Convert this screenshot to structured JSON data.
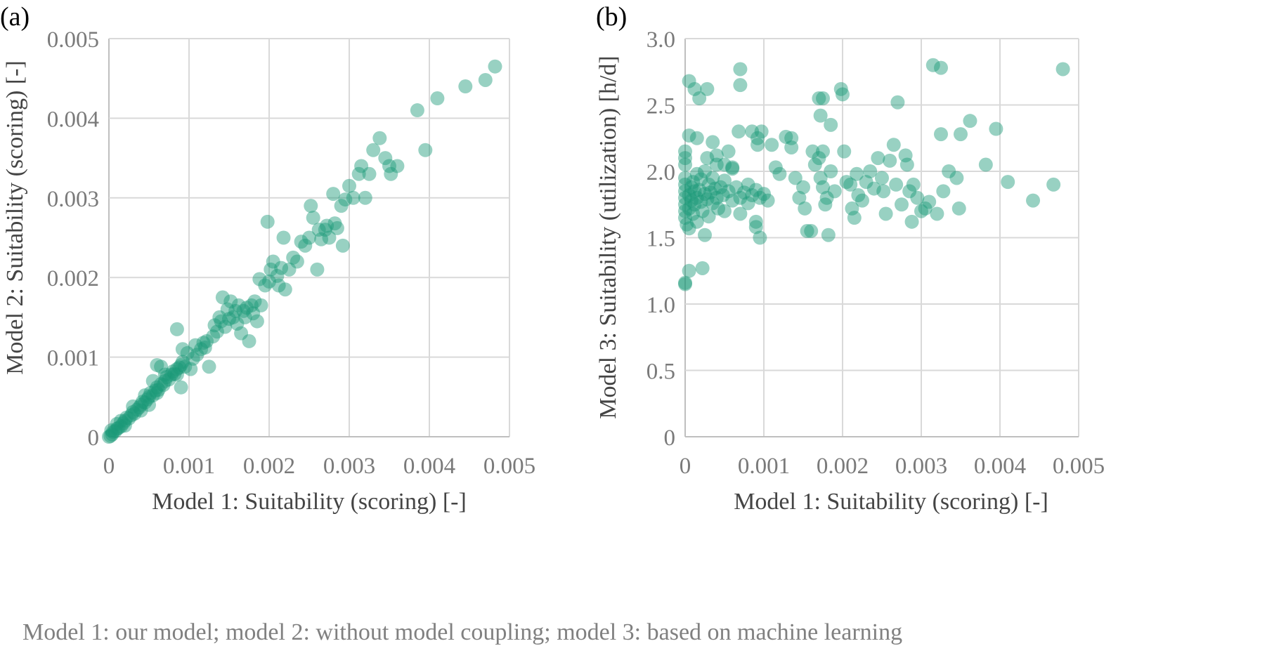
{
  "caption": "Model 1: our model; model 2: without model coupling; model 3: based on machine learning",
  "point_color": "#1a9a78",
  "grid_color": "#d9d9d9",
  "chart_data": [
    {
      "id": "a",
      "panel_label": "(a)",
      "type": "scatter",
      "title": "",
      "xlabel": "Model 1: Suitability (scoring) [-]",
      "ylabel": "Model 2: Suitability (scoring) [-]",
      "xlim": [
        0,
        0.005
      ],
      "ylim": [
        0,
        0.005
      ],
      "xticks": [
        0,
        0.001,
        0.002,
        0.003,
        0.004,
        0.005
      ],
      "xtick_labels": [
        "0",
        "0.001",
        "0.002",
        "0.003",
        "0.004",
        "0.005"
      ],
      "yticks": [
        0,
        0.001,
        0.002,
        0.003,
        0.004,
        0.005
      ],
      "ytick_labels": [
        "0",
        "0.001",
        "0.002",
        "0.003",
        "0.004",
        "0.005"
      ],
      "grid": true,
      "legend": "none",
      "points": [
        [
          0.0,
          0.0
        ],
        [
          2e-05,
          1e-05
        ],
        [
          4e-05,
          3e-05
        ],
        [
          5e-05,
          6e-05
        ],
        [
          8e-05,
          7e-05
        ],
        [
          0.0001,
          0.0001
        ],
        [
          0.00012,
          0.00011
        ],
        [
          0.00015,
          0.00013
        ],
        [
          0.00018,
          0.00017
        ],
        [
          0.0002,
          0.0002
        ],
        [
          0.00022,
          0.00024
        ],
        [
          0.00025,
          0.00023
        ],
        [
          0.00028,
          0.00027
        ],
        [
          0.0003,
          0.00031
        ],
        [
          0.00032,
          0.00029
        ],
        [
          0.00035,
          0.00034
        ],
        [
          0.00038,
          0.00037
        ],
        [
          0.0004,
          0.0004
        ],
        [
          0.00042,
          0.00044
        ],
        [
          0.00045,
          0.00043
        ],
        [
          0.00048,
          0.00047
        ],
        [
          0.0005,
          0.0005
        ],
        [
          0.00052,
          0.00055
        ],
        [
          0.00055,
          0.00052
        ],
        [
          0.00058,
          0.00058
        ],
        [
          0.0006,
          0.00062
        ],
        [
          0.00062,
          0.00059
        ],
        [
          0.00065,
          0.00066
        ],
        [
          0.00068,
          0.00065
        ],
        [
          0.0007,
          0.0007
        ],
        [
          0.00072,
          0.00075
        ],
        [
          0.00075,
          0.00072
        ],
        [
          0.00078,
          0.00078
        ],
        [
          0.0008,
          0.00082
        ],
        [
          0.00082,
          0.00079
        ],
        [
          0.00085,
          0.00085
        ],
        [
          0.00088,
          0.00087
        ],
        [
          0.0009,
          0.0009
        ],
        [
          0.00092,
          0.00094
        ],
        [
          3e-05,
          8e-05
        ],
        [
          0.0001,
          0.00016
        ],
        [
          0.00015,
          0.0002
        ],
        [
          0.0002,
          0.00014
        ],
        [
          0.0003,
          0.00038
        ],
        [
          0.0004,
          0.00033
        ],
        [
          0.00045,
          0.00052
        ],
        [
          0.0005,
          0.0004
        ],
        [
          0.0006,
          0.00055
        ],
        [
          0.0007,
          0.00078
        ],
        [
          0.00065,
          0.00088
        ],
        [
          0.00055,
          0.0007
        ],
        [
          0.00085,
          0.00078
        ],
        [
          0.0009,
          0.00062
        ],
        [
          0.00095,
          0.00088
        ],
        [
          0.00098,
          0.00105
        ],
        [
          0.0006,
          0.0009
        ],
        [
          0.00085,
          0.00135
        ],
        [
          0.00092,
          0.0011
        ],
        [
          0.00102,
          0.00085
        ],
        [
          0.00105,
          0.00098
        ],
        [
          0.00108,
          0.00115
        ],
        [
          0.0011,
          0.00103
        ],
        [
          0.00115,
          0.0011
        ],
        [
          0.00118,
          0.00118
        ],
        [
          0.0012,
          0.00112
        ],
        [
          0.00122,
          0.0012
        ],
        [
          0.00125,
          0.00088
        ],
        [
          0.0013,
          0.00126
        ],
        [
          0.00132,
          0.0014
        ],
        [
          0.00135,
          0.00132
        ],
        [
          0.00138,
          0.0015
        ],
        [
          0.0014,
          0.00145
        ],
        [
          0.00142,
          0.00175
        ],
        [
          0.00145,
          0.00138
        ],
        [
          0.00148,
          0.0016
        ],
        [
          0.0015,
          0.00148
        ],
        [
          0.00152,
          0.0017
        ],
        [
          0.00155,
          0.0015
        ],
        [
          0.00158,
          0.00158
        ],
        [
          0.0016,
          0.00142
        ],
        [
          0.00162,
          0.00165
        ],
        [
          0.00165,
          0.0013
        ],
        [
          0.00168,
          0.00158
        ],
        [
          0.0017,
          0.0015
        ],
        [
          0.00172,
          0.00162
        ],
        [
          0.00175,
          0.0012
        ],
        [
          0.00178,
          0.00165
        ],
        [
          0.0018,
          0.00155
        ],
        [
          0.00182,
          0.0017
        ],
        [
          0.00185,
          0.00145
        ],
        [
          0.00188,
          0.00198
        ],
        [
          0.0019,
          0.00165
        ],
        [
          0.00195,
          0.0019
        ],
        [
          0.002,
          0.00195
        ],
        [
          0.00198,
          0.0027
        ],
        [
          0.00202,
          0.0021
        ],
        [
          0.00205,
          0.0022
        ],
        [
          0.0021,
          0.00202
        ],
        [
          0.00212,
          0.0019
        ],
        [
          0.00215,
          0.00212
        ],
        [
          0.00218,
          0.0025
        ],
        [
          0.0022,
          0.00185
        ],
        [
          0.00225,
          0.0021
        ],
        [
          0.0023,
          0.00225
        ],
        [
          0.00235,
          0.0022
        ],
        [
          0.0024,
          0.00245
        ],
        [
          0.00245,
          0.0024
        ],
        [
          0.0025,
          0.0025
        ],
        [
          0.00252,
          0.0029
        ],
        [
          0.00255,
          0.00275
        ],
        [
          0.0026,
          0.0021
        ],
        [
          0.00262,
          0.0026
        ],
        [
          0.00265,
          0.00248
        ],
        [
          0.0027,
          0.0026
        ],
        [
          0.00272,
          0.00265
        ],
        [
          0.00275,
          0.0025
        ],
        [
          0.0028,
          0.00305
        ],
        [
          0.00282,
          0.00268
        ],
        [
          0.00285,
          0.00262
        ],
        [
          0.0029,
          0.0029
        ],
        [
          0.00292,
          0.0024
        ],
        [
          0.00295,
          0.00298
        ],
        [
          0.003,
          0.00315
        ],
        [
          0.00305,
          0.003
        ],
        [
          0.00312,
          0.0033
        ],
        [
          0.00315,
          0.0034
        ],
        [
          0.0032,
          0.003
        ],
        [
          0.00325,
          0.0033
        ],
        [
          0.0033,
          0.0036
        ],
        [
          0.00338,
          0.00375
        ],
        [
          0.00345,
          0.0035
        ],
        [
          0.0035,
          0.0034
        ],
        [
          0.00352,
          0.0033
        ],
        [
          0.0036,
          0.0034
        ],
        [
          0.00385,
          0.0041
        ],
        [
          0.00395,
          0.0036
        ],
        [
          0.0041,
          0.00425
        ],
        [
          0.00445,
          0.0044
        ],
        [
          0.0047,
          0.00448
        ],
        [
          0.00482,
          0.00465
        ]
      ]
    },
    {
      "id": "b",
      "panel_label": "(b)",
      "type": "scatter",
      "title": "",
      "xlabel": "Model 1: Suitability (scoring) [-]",
      "ylabel": "Model 3: Suitability (utilization) [h/d]",
      "xlim": [
        0,
        0.005
      ],
      "ylim": [
        0,
        3.0
      ],
      "xticks": [
        0,
        0.001,
        0.002,
        0.003,
        0.004,
        0.005
      ],
      "xtick_labels": [
        "0",
        "0.001",
        "0.002",
        "0.003",
        "0.004",
        "0.005"
      ],
      "yticks": [
        0,
        0.5,
        1.0,
        1.5,
        2.0,
        2.5,
        3.0
      ],
      "ytick_labels": [
        "0",
        "0.5",
        "1.0",
        "1.5",
        "2.0",
        "2.5",
        "3.0"
      ],
      "grid": true,
      "legend": "none",
      "points": [
        [
          0.0,
          1.15
        ],
        [
          0.0,
          1.16
        ],
        [
          5e-05,
          1.25
        ],
        [
          0.00022,
          1.27
        ],
        [
          0.0,
          1.8
        ],
        [
          0.0,
          1.85
        ],
        [
          0.0,
          1.75
        ],
        [
          0.0,
          1.9
        ],
        [
          0.0,
          1.7
        ],
        [
          0.0,
          1.95
        ],
        [
          0.0,
          2.05
        ],
        [
          0.0,
          2.1
        ],
        [
          0.0,
          2.15
        ],
        [
          0.0,
          1.65
        ],
        [
          2e-05,
          1.6
        ],
        [
          5e-05,
          1.82
        ],
        [
          5e-05,
          1.72
        ],
        [
          8e-05,
          1.88
        ],
        [
          8e-05,
          1.78
        ],
        [
          0.0001,
          1.92
        ],
        [
          0.0001,
          1.68
        ],
        [
          0.00012,
          1.85
        ],
        [
          0.00012,
          1.75
        ],
        [
          0.00015,
          1.8
        ],
        [
          0.00015,
          1.98
        ],
        [
          0.00015,
          1.62
        ],
        [
          0.00018,
          1.86
        ],
        [
          0.0002,
          1.77
        ],
        [
          0.0002,
          1.94
        ],
        [
          0.00022,
          1.7
        ],
        [
          0.00025,
          1.83
        ],
        [
          0.00025,
          2.0
        ],
        [
          0.00028,
          1.79
        ],
        [
          0.0003,
          1.9
        ],
        [
          0.0003,
          1.66
        ],
        [
          0.00032,
          1.84
        ],
        [
          0.00035,
          1.76
        ],
        [
          0.00035,
          1.95
        ],
        [
          0.00038,
          1.87
        ],
        [
          0.0004,
          1.8
        ],
        [
          0.0004,
          2.05
        ],
        [
          0.00042,
          1.72
        ],
        [
          0.00045,
          1.88
        ],
        [
          0.00048,
          1.82
        ],
        [
          0.0005,
          1.93
        ],
        [
          0.0005,
          1.7
        ],
        [
          0.00055,
          1.85
        ],
        [
          0.0006,
          1.78
        ],
        [
          0.0006,
          2.02
        ],
        [
          0.00065,
          1.88
        ],
        [
          0.0007,
          1.8
        ],
        [
          0.0007,
          1.68
        ],
        [
          0.00075,
          1.84
        ],
        [
          0.0008,
          1.9
        ],
        [
          0.0008,
          1.76
        ],
        [
          0.00085,
          1.82
        ],
        [
          0.0009,
          1.86
        ],
        [
          0.00095,
          1.8
        ],
        [
          0.001,
          1.83
        ],
        [
          0.00105,
          1.78
        ],
        [
          5e-05,
          2.27
        ],
        [
          0.00015,
          2.25
        ],
        [
          0.00035,
          2.22
        ],
        [
          0.00028,
          2.1
        ],
        [
          0.0004,
          2.12
        ],
        [
          0.0005,
          2.05
        ],
        [
          0.0006,
          2.03
        ],
        [
          0.00068,
          2.3
        ],
        [
          0.00085,
          2.3
        ],
        [
          0.00092,
          2.25
        ],
        [
          0.00097,
          2.3
        ],
        [
          0.00092,
          2.2
        ],
        [
          0.00055,
          2.15
        ],
        [
          0.0009,
          1.62
        ],
        [
          0.0009,
          1.58
        ],
        [
          0.00095,
          1.5
        ],
        [
          0.00025,
          1.52
        ],
        [
          5e-05,
          1.57
        ],
        [
          5e-05,
          2.68
        ],
        [
          0.00012,
          2.62
        ],
        [
          0.00018,
          2.55
        ],
        [
          0.00028,
          2.62
        ],
        [
          0.0007,
          2.77
        ],
        [
          0.0007,
          2.65
        ],
        [
          0.0011,
          2.2
        ],
        [
          0.00115,
          2.03
        ],
        [
          0.0012,
          1.98
        ],
        [
          0.00128,
          2.26
        ],
        [
          0.00135,
          2.25
        ],
        [
          0.00135,
          2.18
        ],
        [
          0.0014,
          1.95
        ],
        [
          0.00145,
          1.8
        ],
        [
          0.0015,
          1.88
        ],
        [
          0.00152,
          1.72
        ],
        [
          0.00155,
          1.55
        ],
        [
          0.0016,
          1.55
        ],
        [
          0.00162,
          2.15
        ],
        [
          0.00165,
          2.05
        ],
        [
          0.0017,
          2.1
        ],
        [
          0.00172,
          1.95
        ],
        [
          0.00175,
          2.15
        ],
        [
          0.00175,
          1.88
        ],
        [
          0.00178,
          1.75
        ],
        [
          0.0018,
          1.8
        ],
        [
          0.00182,
          1.52
        ],
        [
          0.00185,
          2.0
        ],
        [
          0.0019,
          1.85
        ],
        [
          0.0017,
          2.55
        ],
        [
          0.00175,
          2.55
        ],
        [
          0.00172,
          2.42
        ],
        [
          0.00185,
          2.35
        ],
        [
          0.00198,
          2.62
        ],
        [
          0.002,
          2.58
        ],
        [
          0.00202,
          2.15
        ],
        [
          0.00205,
          1.92
        ],
        [
          0.0021,
          1.9
        ],
        [
          0.00212,
          1.72
        ],
        [
          0.00215,
          1.65
        ],
        [
          0.00218,
          1.98
        ],
        [
          0.0022,
          1.82
        ],
        [
          0.00225,
          1.78
        ],
        [
          0.0023,
          1.92
        ],
        [
          0.00235,
          2.0
        ],
        [
          0.0024,
          1.87
        ],
        [
          0.00245,
          2.1
        ],
        [
          0.0025,
          1.95
        ],
        [
          0.00252,
          1.85
        ],
        [
          0.00255,
          1.68
        ],
        [
          0.0026,
          2.08
        ],
        [
          0.00265,
          2.2
        ],
        [
          0.00268,
          1.9
        ],
        [
          0.0027,
          2.52
        ],
        [
          0.00275,
          1.75
        ],
        [
          0.0028,
          2.12
        ],
        [
          0.00282,
          2.05
        ],
        [
          0.00285,
          1.85
        ],
        [
          0.00288,
          1.62
        ],
        [
          0.0029,
          1.9
        ],
        [
          0.00295,
          1.8
        ],
        [
          0.003,
          1.7
        ],
        [
          0.00305,
          1.72
        ],
        [
          0.0031,
          1.77
        ],
        [
          0.00315,
          2.8
        ],
        [
          0.0032,
          1.68
        ],
        [
          0.00325,
          2.78
        ],
        [
          0.00325,
          2.28
        ],
        [
          0.00328,
          1.85
        ],
        [
          0.00335,
          2.0
        ],
        [
          0.00345,
          1.95
        ],
        [
          0.00348,
          1.72
        ],
        [
          0.0035,
          2.28
        ],
        [
          0.00362,
          2.38
        ],
        [
          0.00382,
          2.05
        ],
        [
          0.00395,
          2.32
        ],
        [
          0.0041,
          1.92
        ],
        [
          0.00442,
          1.78
        ],
        [
          0.00468,
          1.9
        ],
        [
          0.0048,
          2.77
        ]
      ]
    }
  ]
}
